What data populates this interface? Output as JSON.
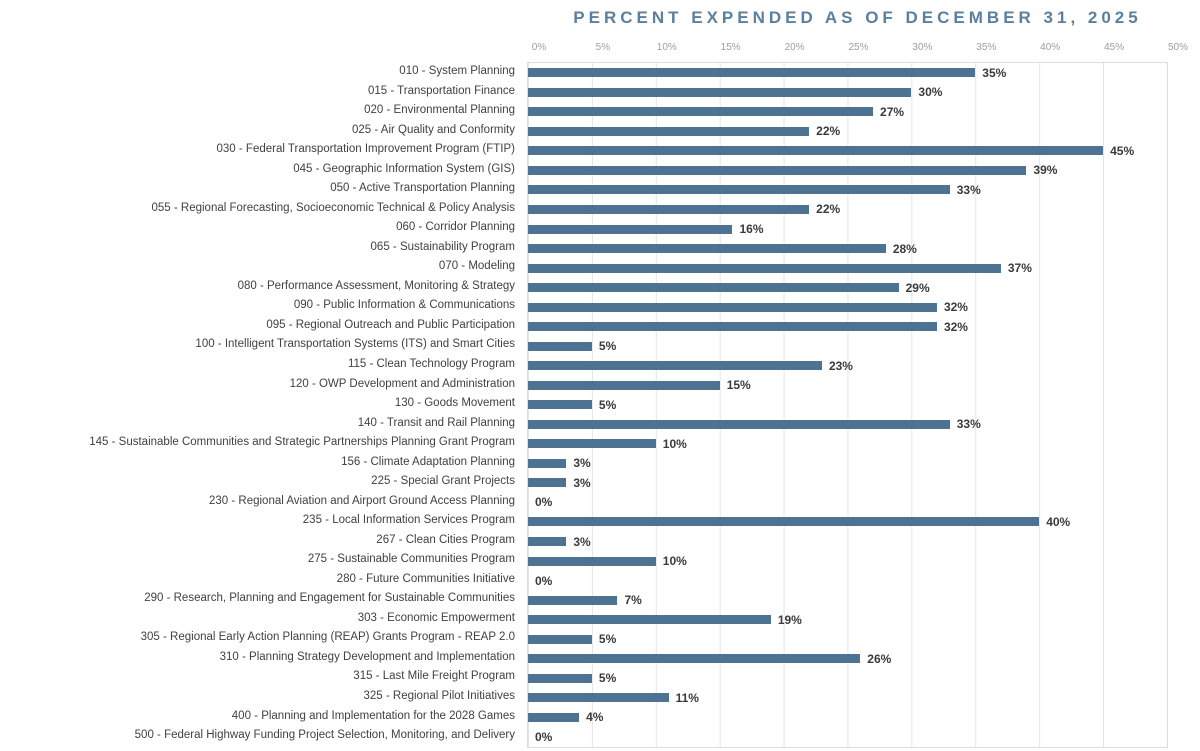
{
  "chart_data": {
    "type": "bar",
    "orientation": "horizontal",
    "title": "PERCENT EXPENDED AS OF DECEMBER 31, 2025",
    "xlabel": "",
    "ylabel": "",
    "xlim": [
      0,
      50
    ],
    "x_ticks": [
      "0%",
      "5%",
      "10%",
      "15%",
      "20%",
      "25%",
      "30%",
      "35%",
      "40%",
      "45%",
      "50%"
    ],
    "grid": true,
    "legend": "none",
    "categories": [
      "010 - System Planning",
      "015 - Transportation Finance",
      "020 - Environmental Planning",
      "025 - Air Quality and Conformity",
      "030 - Federal Transportation Improvement Program (FTIP)",
      "045 - Geographic Information System (GIS)",
      "050 - Active Transportation Planning",
      "055 - Regional Forecasting, Socioeconomic Technical & Policy Analysis",
      "060 - Corridor Planning",
      "065 - Sustainability Program",
      "070 - Modeling",
      "080 - Performance Assessment, Monitoring & Strategy",
      "090 - Public Information & Communications",
      "095 - Regional Outreach and Public Participation",
      "100 - Intelligent Transportation Systems (ITS) and Smart Cities",
      "115 - Clean Technology Program",
      "120 - OWP Development and Administration",
      "130 - Goods Movement",
      "140 - Transit and Rail Planning",
      "145 - Sustainable Communities and Strategic Partnerships Planning Grant Program",
      "156 - Climate Adaptation Planning",
      "225 - Special Grant Projects",
      "230 - Regional Aviation and Airport Ground Access Planning",
      "235 - Local Information Services Program",
      "267 - Clean Cities Program",
      "275 - Sustainable Communities Program",
      "280 - Future Communities Initiative",
      "290 - Research, Planning and Engagement for Sustainable Communities",
      "303 - Economic Empowerment",
      "305 - Regional Early Action Planning (REAP) Grants Program - REAP 2.0",
      "310 - Planning Strategy Development and Implementation",
      "315 - Last Mile Freight Program",
      "325 - Regional Pilot Initiatives",
      "400 - Planning and Implementation for the 2028 Games",
      "500 - Federal Highway Funding Project Selection, Monitoring, and Delivery"
    ],
    "values": [
      35,
      30,
      27,
      22,
      45,
      39,
      33,
      22,
      16,
      28,
      37,
      29,
      32,
      32,
      5,
      23,
      15,
      5,
      33,
      10,
      3,
      3,
      0,
      40,
      3,
      10,
      0,
      7,
      19,
      5,
      26,
      5,
      11,
      4,
      0
    ],
    "value_labels": [
      "35%",
      "30%",
      "27%",
      "22%",
      "45%",
      "39%",
      "33%",
      "22%",
      "16%",
      "28%",
      "37%",
      "29%",
      "32%",
      "32%",
      "5%",
      "23%",
      "15%",
      "5%",
      "33%",
      "10%",
      "3%",
      "3%",
      "0%",
      "40%",
      "3%",
      "10%",
      "0%",
      "7%",
      "19%",
      "5%",
      "26%",
      "5%",
      "11%",
      "4%",
      "0%"
    ],
    "colors": {
      "bar": "#4e7291",
      "title": "#5b7f9e",
      "tick_label": "#9e9e9e",
      "category_label": "#414141",
      "value_label": "#3a3a3a",
      "gridline": "#e4e4e4",
      "plot_border": "#dcdcdc",
      "background": "#ffffff"
    }
  }
}
